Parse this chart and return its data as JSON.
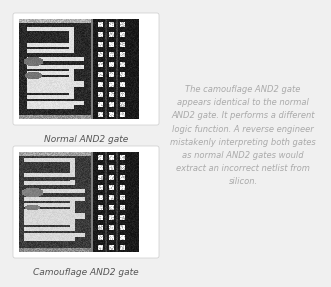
{
  "background_color": "#f0f0f0",
  "label1": "Normal AND2 gate",
  "label2": "Camouflage AND2 gate",
  "description": "The camouflage AND2 gate\nappears identical to the normal\nAND2 gate. It performs a different\nlogic function. A reverse engineer\nmistakenly interpreting both gates\nas normal AND2 gates would\nextract an incorrect netlist from\nsilicon.",
  "desc_fontsize": 6.0,
  "label_fontsize": 6.5,
  "label_color": "#555555",
  "desc_color": "#aaaaaa",
  "box_facecolor": "#ffffff",
  "box_edgecolor": "#cccccc"
}
